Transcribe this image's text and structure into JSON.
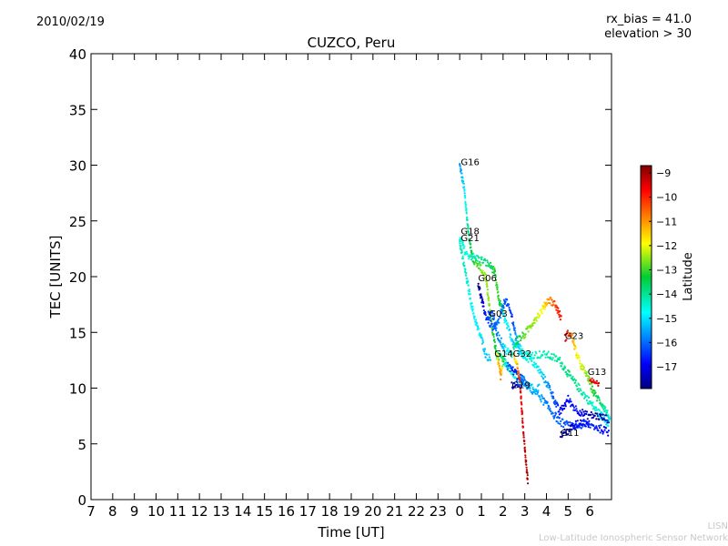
{
  "header": {
    "date": "2010/02/19",
    "rx_bias": "rx_bias = 41.0",
    "elevation": "elevation > 30"
  },
  "footer": {
    "org_short": "LISN",
    "org_long": "Low-Latitude Ionospheric Sensor Network"
  },
  "colors": {
    "background": "#ffffff",
    "axes": "#000000",
    "footer_text": "#c8c8c8"
  },
  "chart_data": {
    "type": "scatter",
    "title": "CUZCO, Peru",
    "xlabel": "Time [UT]",
    "ylabel": "TEC [UNITS]",
    "x_hours_range": [
      7,
      31
    ],
    "x_tick_labels": [
      "7",
      "8",
      "9",
      "10",
      "11",
      "12",
      "13",
      "14",
      "15",
      "16",
      "17",
      "18",
      "19",
      "20",
      "21",
      "22",
      "23",
      "0",
      "1",
      "2",
      "3",
      "4",
      "5",
      "6"
    ],
    "ylim": [
      0,
      40
    ],
    "y_ticks": [
      0,
      5,
      10,
      15,
      20,
      25,
      30,
      35,
      40
    ],
    "colorbar": {
      "label": "Latitude",
      "range": [
        -17.9,
        -8.7
      ],
      "ticks": [
        -9,
        -10,
        -11,
        -12,
        -13,
        -14,
        -15,
        -16,
        -17
      ]
    },
    "series": [
      {
        "name": "G16",
        "label_at": [
          24.05,
          30.0
        ],
        "points": [
          [
            24.0,
            30.0,
            -15.8
          ],
          [
            24.2,
            28.0,
            -15.0
          ],
          [
            24.4,
            24.0,
            -14.0
          ],
          [
            24.6,
            21.5,
            -13.2
          ],
          [
            24.9,
            21.0,
            -12.8
          ],
          [
            25.2,
            20.0,
            -12.4
          ],
          [
            25.45,
            16.0,
            -12.8
          ],
          [
            25.7,
            13.0,
            -13.6
          ],
          [
            26.0,
            12.5,
            -14.0
          ],
          [
            26.4,
            11.5,
            -14.5
          ],
          [
            26.9,
            10.5,
            -15.0
          ],
          [
            27.3,
            10.0,
            -15.1
          ],
          [
            27.7,
            10.0,
            -15.2
          ]
        ]
      },
      {
        "name": "G18",
        "label_at": [
          24.05,
          23.8
        ],
        "points": [
          [
            24.0,
            23.5,
            -14.5
          ],
          [
            24.3,
            22.0,
            -14.5
          ],
          [
            24.6,
            21.8,
            -14.3
          ],
          [
            25.0,
            21.5,
            -14.0
          ],
          [
            25.4,
            21.0,
            -13.6
          ],
          [
            25.6,
            20.5,
            -13.2
          ],
          [
            25.8,
            18.0,
            -13.0
          ],
          [
            26.1,
            16.0,
            -14.8
          ],
          [
            26.5,
            14.0,
            -15.2
          ],
          [
            27.0,
            13.0,
            -14.5
          ],
          [
            27.5,
            13.0,
            -14.3
          ],
          [
            28.0,
            13.0,
            -14.2
          ],
          [
            28.6,
            12.5,
            -14.0
          ],
          [
            29.1,
            11.0,
            -13.8
          ],
          [
            29.7,
            9.5,
            -14.2
          ],
          [
            30.3,
            8.0,
            -14.5
          ],
          [
            30.9,
            6.8,
            -14.7
          ]
        ]
      },
      {
        "name": "G21",
        "label_at": [
          24.05,
          23.2
        ],
        "points": [
          [
            24.0,
            23.0,
            -14.2
          ],
          [
            24.2,
            21.0,
            -14.3
          ],
          [
            24.4,
            19.0,
            -14.5
          ],
          [
            24.6,
            17.0,
            -14.8
          ],
          [
            24.8,
            15.5,
            -14.8
          ],
          [
            25.0,
            14.5,
            -15.0
          ],
          [
            25.2,
            13.0,
            -15.2
          ],
          [
            25.45,
            12.5,
            -15.3
          ]
        ]
      },
      {
        "name": "G06",
        "label_at": [
          24.85,
          19.6
        ],
        "points": [
          [
            24.85,
            19.5,
            -17.8
          ],
          [
            25.0,
            18.0,
            -17.5
          ],
          [
            25.2,
            16.5,
            -16.6
          ],
          [
            25.4,
            15.8,
            -16.2
          ],
          [
            25.6,
            15.2,
            -16.0
          ],
          [
            25.9,
            16.5,
            -15.8
          ],
          [
            26.1,
            18.0,
            -16.2
          ],
          [
            26.4,
            16.5,
            -16.5
          ],
          [
            26.6,
            14.5,
            -15.5
          ],
          [
            26.9,
            13.0,
            -14.8
          ],
          [
            27.3,
            12.5,
            -14.5
          ],
          [
            27.7,
            11.5,
            -15.0
          ],
          [
            28.2,
            9.8,
            -15.8
          ],
          [
            28.6,
            7.8,
            -16.7
          ],
          [
            28.85,
            8.5,
            -17.1
          ],
          [
            29.0,
            9.0,
            -16.9
          ],
          [
            29.3,
            8.2,
            -16.7
          ],
          [
            29.8,
            7.6,
            -17.3
          ],
          [
            30.3,
            7.5,
            -17.8
          ],
          [
            30.9,
            7.2,
            -17.2
          ]
        ]
      },
      {
        "name": "G03",
        "label_at": [
          25.35,
          16.4
        ],
        "points": [
          [
            25.3,
            16.5,
            -16.4
          ],
          [
            25.5,
            16.8,
            -16.2
          ],
          [
            25.7,
            15.0,
            -16.0
          ],
          [
            25.9,
            14.2,
            -15.6
          ],
          [
            26.1,
            13.5,
            -15.0
          ],
          [
            26.4,
            13.0,
            -14.5
          ],
          [
            26.6,
            14.2,
            -13.6
          ],
          [
            27.0,
            14.8,
            -12.8
          ],
          [
            27.4,
            16.0,
            -12.5
          ],
          [
            27.8,
            17.0,
            -12.0
          ],
          [
            28.1,
            18.0,
            -11.0
          ],
          [
            28.4,
            17.5,
            -10.3
          ],
          [
            28.7,
            16.2,
            -9.8
          ]
        ]
      },
      {
        "name": "G23",
        "label_at": [
          28.85,
          14.4
        ],
        "points": [
          [
            28.85,
            14.5,
            -9.5
          ],
          [
            29.05,
            15.0,
            -10.2
          ],
          [
            29.2,
            14.5,
            -11.0
          ],
          [
            29.4,
            13.0,
            -11.8
          ],
          [
            29.6,
            12.0,
            -12.2
          ],
          [
            29.9,
            11.0,
            -12.6
          ],
          [
            30.2,
            9.5,
            -13.3
          ],
          [
            30.6,
            8.5,
            -14.0
          ],
          [
            30.95,
            7.2,
            -14.6
          ]
        ]
      },
      {
        "name": "G14",
        "label_at": [
          25.6,
          12.8
        ],
        "points": [
          [
            25.7,
            12.8,
            -11.8
          ],
          [
            25.8,
            12.0,
            -11.4
          ],
          [
            25.9,
            11.0,
            -10.8
          ],
          [
            26.0,
            12.5,
            -13.0
          ],
          [
            26.2,
            12.0,
            -16.0
          ],
          [
            26.5,
            11.5,
            -17.0
          ],
          [
            26.8,
            11.0,
            -16.4
          ],
          [
            27.2,
            10.0,
            -15.6
          ],
          [
            27.6,
            9.5,
            -15.4
          ],
          [
            28.0,
            8.5,
            -15.8
          ],
          [
            28.6,
            7.0,
            -16.2
          ],
          [
            29.2,
            6.5,
            -16.2
          ],
          [
            29.8,
            6.8,
            -16.5
          ],
          [
            30.3,
            6.5,
            -16.7
          ],
          [
            30.9,
            6.0,
            -16.9
          ]
        ]
      },
      {
        "name": "G32",
        "label_at": [
          26.45,
          12.8
        ],
        "points": [
          [
            26.5,
            13.0,
            -11.2
          ],
          [
            26.6,
            12.5,
            -11.8
          ],
          [
            26.7,
            11.5,
            -10.8
          ],
          [
            26.8,
            10.0,
            -9.8
          ],
          [
            26.9,
            7.0,
            -9.5
          ],
          [
            27.0,
            4.5,
            -9.2
          ],
          [
            27.1,
            2.5,
            -9.1
          ],
          [
            27.15,
            1.5,
            -9.0
          ]
        ]
      },
      {
        "name": "G19",
        "label_at": [
          26.4,
          10.0
        ],
        "points": [
          [
            26.4,
            10.2,
            -17.3
          ],
          [
            26.6,
            10.6,
            -16.8
          ],
          [
            26.8,
            10.3,
            -16.3
          ],
          [
            27.0,
            11.0,
            -15.5
          ]
        ]
      },
      {
        "name": "G11",
        "label_at": [
          28.65,
          5.7
        ],
        "points": [
          [
            28.65,
            5.8,
            -17.6
          ],
          [
            28.9,
            6.0,
            -17.5
          ],
          [
            29.2,
            6.5,
            -17.2
          ],
          [
            29.6,
            7.0,
            -16.9
          ],
          [
            30.0,
            6.7,
            -16.8
          ]
        ]
      },
      {
        "name": "G13",
        "label_at": [
          29.9,
          11.2
        ],
        "points": [
          [
            30.0,
            11.0,
            -9.6
          ],
          [
            30.2,
            10.6,
            -9.5
          ],
          [
            30.45,
            10.4,
            -9.4
          ]
        ]
      }
    ]
  }
}
